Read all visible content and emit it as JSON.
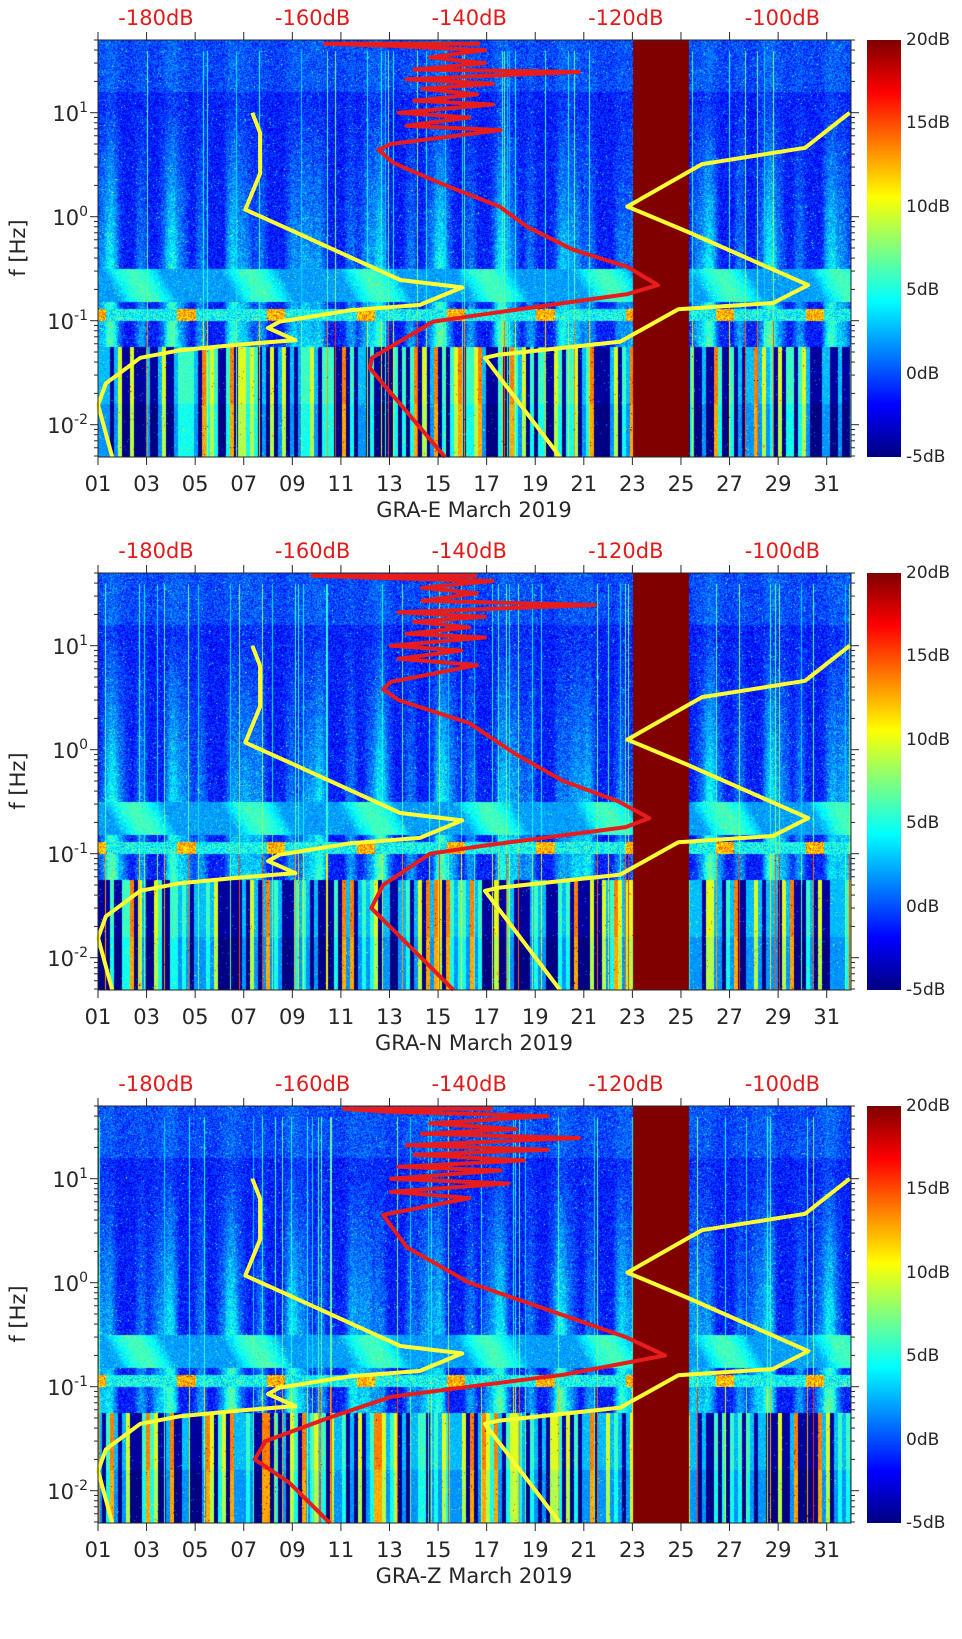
{
  "colors": {
    "nlnm_nhnm": "#ffff33",
    "station_model": "#e81c1c",
    "db_label": "#e01b1b",
    "saturated": "#800000"
  },
  "chart_data": {
    "type": "heatmap",
    "layout": "three stacked spectrogram panels with noise-model overlays",
    "ylabel": "f [Hz]",
    "yscale": "log",
    "ylim_hz": [
      0.0049,
      50
    ],
    "y_ticks": [
      {
        "base": "10",
        "exp": "1",
        "value": 10
      },
      {
        "base": "10",
        "exp": "0",
        "value": 1
      },
      {
        "base": "10",
        "exp": "-1",
        "value": 0.1
      },
      {
        "base": "10",
        "exp": "-2",
        "value": 0.01
      }
    ],
    "x_range_days": [
      1,
      32
    ],
    "x_tick_labels": [
      "01",
      "03",
      "05",
      "07",
      "09",
      "11",
      "13",
      "15",
      "17",
      "19",
      "21",
      "23",
      "25",
      "27",
      "29",
      "31"
    ],
    "x_tick_values": [
      1,
      3,
      5,
      7,
      9,
      11,
      13,
      15,
      17,
      19,
      21,
      23,
      25,
      27,
      29,
      31
    ],
    "top_axis_db_labels": [
      "-180dB",
      "-160dB",
      "-140dB",
      "-120dB",
      "-100dB"
    ],
    "top_axis_db_values": [
      -180,
      -160,
      -140,
      -120,
      -100
    ],
    "colorbar": {
      "clim_db": [
        -5,
        20
      ],
      "tick_labels": [
        "20dB",
        "15dB",
        "10dB",
        "5dB",
        "0dB",
        "-5dB"
      ],
      "tick_values": [
        20,
        15,
        10,
        5,
        0,
        -5
      ],
      "colormap": "jet"
    },
    "saturated_interval_days": [
      23,
      25.3
    ],
    "nlnm": {
      "name": "low noise model",
      "points_db_hz": [
        [
          -185.6,
          0.0049
        ],
        [
          -187.4,
          0.0155
        ],
        [
          -186.4,
          0.025
        ],
        [
          -182.0,
          0.044
        ],
        [
          -176.9,
          0.052
        ],
        [
          -169.3,
          0.059
        ],
        [
          -162.2,
          0.065
        ],
        [
          -165.7,
          0.085
        ],
        [
          -164.2,
          0.098
        ],
        [
          -155.2,
          0.126
        ],
        [
          -146.3,
          0.142
        ],
        [
          -140.9,
          0.209
        ],
        [
          -148.8,
          0.246
        ],
        [
          -162.9,
          0.75
        ],
        [
          -168.6,
          1.17
        ],
        [
          -166.7,
          2.6
        ],
        [
          -166.7,
          6.4
        ],
        [
          -167.7,
          10
        ]
      ]
    },
    "nhnm": {
      "name": "high noise model",
      "points_db_hz": [
        [
          -128.4,
          0.0049
        ],
        [
          -138.0,
          0.044
        ],
        [
          -136.3,
          0.047
        ],
        [
          -120.7,
          0.063
        ],
        [
          -113.3,
          0.129
        ],
        [
          -101.2,
          0.148
        ],
        [
          -96.7,
          0.22
        ],
        [
          -112.2,
          0.72
        ],
        [
          -119.8,
          1.25
        ],
        [
          -110.3,
          3.2
        ],
        [
          -97.1,
          4.6
        ],
        [
          -91.4,
          10
        ]
      ]
    },
    "panels": [
      {
        "xlabel": "GRA-E March 2019",
        "seed": 11,
        "station_psd_db_hz": [
          [
            -143.1,
            0.0049
          ],
          [
            -152.7,
            0.035
          ],
          [
            -152.4,
            0.044
          ],
          [
            -144.6,
            0.098
          ],
          [
            -138.6,
            0.114
          ],
          [
            -119.8,
            0.18
          ],
          [
            -115.9,
            0.22
          ],
          [
            -119.8,
            0.33
          ],
          [
            -126.7,
            0.48
          ],
          [
            -132.6,
            0.8
          ],
          [
            -136.1,
            1.25
          ],
          [
            -143.7,
            2.1
          ],
          [
            -149.7,
            3.3
          ],
          [
            -151.6,
            4.4
          ],
          [
            -150,
            5.0
          ],
          [
            -136,
            6.8
          ],
          [
            -148,
            7.5
          ],
          [
            -140,
            9
          ],
          [
            -149,
            10
          ],
          [
            -137,
            12
          ],
          [
            -147,
            13
          ],
          [
            -139,
            15
          ],
          [
            -146,
            17
          ],
          [
            -137,
            19
          ],
          [
            -148,
            21
          ],
          [
            -126,
            24.6
          ],
          [
            -147,
            26
          ],
          [
            -138,
            30
          ],
          [
            -145,
            34
          ],
          [
            -138,
            40
          ],
          [
            -150,
            44
          ],
          [
            -158.4,
            46
          ],
          [
            -138.6,
            46
          ]
        ]
      },
      {
        "xlabel": "GRA-N March 2019",
        "seed": 23,
        "station_psd_db_hz": [
          [
            -142,
            0.0049
          ],
          [
            -152.5,
            0.03
          ],
          [
            -151,
            0.05
          ],
          [
            -145,
            0.1
          ],
          [
            -138,
            0.12
          ],
          [
            -120,
            0.18
          ],
          [
            -117,
            0.22
          ],
          [
            -121,
            0.32
          ],
          [
            -128,
            0.5
          ],
          [
            -134,
            0.9
          ],
          [
            -140,
            1.8
          ],
          [
            -149,
            3.0
          ],
          [
            -151,
            3.8
          ],
          [
            -150,
            4.5
          ],
          [
            -139,
            6.5
          ],
          [
            -149,
            7.5
          ],
          [
            -141,
            9
          ],
          [
            -150,
            10
          ],
          [
            -138,
            12
          ],
          [
            -148,
            13
          ],
          [
            -140,
            15
          ],
          [
            -147,
            17
          ],
          [
            -138,
            19
          ],
          [
            -149,
            21
          ],
          [
            -124,
            24.6
          ],
          [
            -146,
            27
          ],
          [
            -139,
            32
          ],
          [
            -146,
            36
          ],
          [
            -137,
            42
          ],
          [
            -152,
            45
          ],
          [
            -160,
            47
          ],
          [
            -139,
            47
          ]
        ]
      },
      {
        "xlabel": "GRA-Z March 2019",
        "seed": 37,
        "station_psd_db_hz": [
          [
            -157.8,
            0.0049
          ],
          [
            -163,
            0.012
          ],
          [
            -167.4,
            0.02
          ],
          [
            -166,
            0.03
          ],
          [
            -158,
            0.05
          ],
          [
            -150,
            0.08
          ],
          [
            -140,
            0.1
          ],
          [
            -128,
            0.13
          ],
          [
            -115,
            0.2
          ],
          [
            -120,
            0.3
          ],
          [
            -130,
            0.55
          ],
          [
            -140,
            1.0
          ],
          [
            -148,
            2.2
          ],
          [
            -151,
            4.5
          ],
          [
            -140,
            6.5
          ],
          [
            -150,
            7.5
          ],
          [
            -135,
            9
          ],
          [
            -150,
            10
          ],
          [
            -136,
            12
          ],
          [
            -149,
            13
          ],
          [
            -133,
            15
          ],
          [
            -147,
            17
          ],
          [
            -130,
            19
          ],
          [
            -148,
            21
          ],
          [
            -126,
            24.6
          ],
          [
            -146,
            27
          ],
          [
            -134,
            30
          ],
          [
            -145,
            34
          ],
          [
            -130,
            40
          ],
          [
            -150,
            44
          ],
          [
            -156,
            47
          ],
          [
            -137,
            47
          ]
        ]
      }
    ]
  }
}
